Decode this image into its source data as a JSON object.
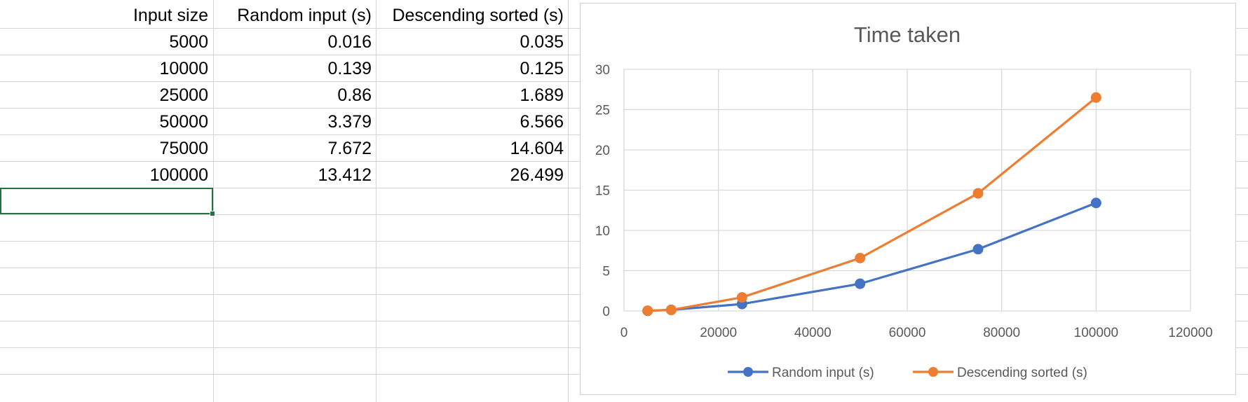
{
  "sheet": {
    "headers": [
      "Input size",
      "Random input (s)",
      "Descending sorted (s)"
    ],
    "rows": [
      [
        "5000",
        "0.016",
        "0.035"
      ],
      [
        "10000",
        "0.139",
        "0.125"
      ],
      [
        "25000",
        "0.86",
        "1.689"
      ],
      [
        "50000",
        "3.379",
        "6.566"
      ],
      [
        "75000",
        "7.672",
        "14.604"
      ],
      [
        "100000",
        "13.412",
        "26.499"
      ]
    ]
  },
  "chart_data": {
    "type": "scatter",
    "title": "Time taken",
    "xlabel": "",
    "ylabel": "",
    "xlim": [
      0,
      120000
    ],
    "ylim": [
      0,
      30
    ],
    "x_ticks": [
      "0",
      "20000",
      "40000",
      "60000",
      "80000",
      "100000",
      "120000"
    ],
    "y_ticks": [
      "0",
      "5",
      "10",
      "15",
      "20",
      "25",
      "30"
    ],
    "grid": true,
    "legend_position": "bottom",
    "x": [
      5000,
      10000,
      25000,
      50000,
      75000,
      100000
    ],
    "series": [
      {
        "name": "Random input (s)",
        "color": "#4472C4",
        "values": [
          0.016,
          0.139,
          0.86,
          3.379,
          7.672,
          13.412
        ]
      },
      {
        "name": "Descending sorted (s)",
        "color": "#ED7D31",
        "values": [
          0.035,
          0.125,
          1.689,
          6.566,
          14.604,
          26.499
        ]
      }
    ]
  }
}
